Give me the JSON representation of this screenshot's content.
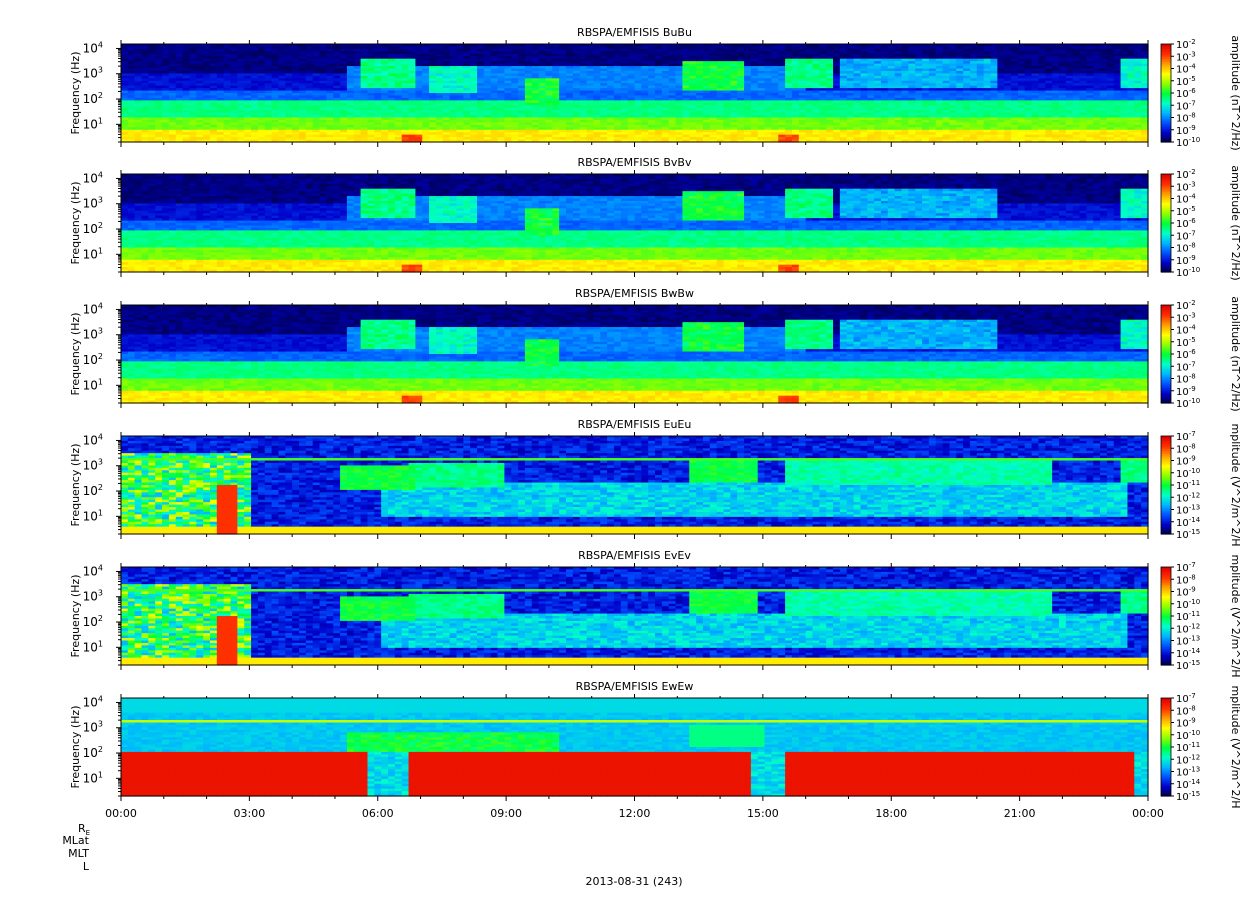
{
  "chart_data": [
    {
      "type": "heatmap",
      "title": "RBSPA/EMFISIS  BuBu",
      "ylabel": "Frequency (Hz)",
      "ylim": [
        2,
        15000
      ],
      "yscale": "log",
      "y_ticks": [
        {
          "value": 10,
          "label": "10^1"
        },
        {
          "value": 100,
          "label": "10^2"
        },
        {
          "value": 1000,
          "label": "10^3"
        },
        {
          "value": 10000,
          "label": "10^4"
        }
      ],
      "colorbar": {
        "label": "amplitude (nT^2/Hz)",
        "exponents": [
          -2,
          -3,
          -4,
          -5,
          -6,
          -7,
          -8,
          -9,
          -10
        ],
        "range": [
          1e-10,
          0.01
        ]
      },
      "field": "magnetic"
    },
    {
      "type": "heatmap",
      "title": "RBSPA/EMFISIS  BvBv",
      "ylabel": "Frequency (Hz)",
      "ylim": [
        2,
        15000
      ],
      "yscale": "log",
      "y_ticks": [
        {
          "value": 10,
          "label": "10^1"
        },
        {
          "value": 100,
          "label": "10^2"
        },
        {
          "value": 1000,
          "label": "10^3"
        },
        {
          "value": 10000,
          "label": "10^4"
        }
      ],
      "colorbar": {
        "label": "amplitude (nT^2/Hz)",
        "exponents": [
          -2,
          -3,
          -4,
          -5,
          -6,
          -7,
          -8,
          -9,
          -10
        ],
        "range": [
          1e-10,
          0.01
        ]
      },
      "field": "magnetic"
    },
    {
      "type": "heatmap",
      "title": "RBSPA/EMFISIS  BwBw",
      "ylabel": "Frequency (Hz)",
      "ylim": [
        2,
        15000
      ],
      "yscale": "log",
      "y_ticks": [
        {
          "value": 10,
          "label": "10^1"
        },
        {
          "value": 100,
          "label": "10^2"
        },
        {
          "value": 1000,
          "label": "10^3"
        },
        {
          "value": 10000,
          "label": "10^4"
        }
      ],
      "colorbar": {
        "label": "amplitude (nT^2/Hz)",
        "exponents": [
          -2,
          -3,
          -4,
          -5,
          -6,
          -7,
          -8,
          -9,
          -10
        ],
        "range": [
          1e-10,
          0.01
        ]
      },
      "field": "magnetic"
    },
    {
      "type": "heatmap",
      "title": "RBSPA/EMFISIS  EuEu",
      "ylabel": "Frequency (Hz)",
      "ylim": [
        2,
        15000
      ],
      "yscale": "log",
      "y_ticks": [
        {
          "value": 10,
          "label": "10^1"
        },
        {
          "value": 100,
          "label": "10^2"
        },
        {
          "value": 1000,
          "label": "10^3"
        },
        {
          "value": 10000,
          "label": "10^4"
        }
      ],
      "colorbar": {
        "label": "mplitude (V^2/m^2/H",
        "exponents": [
          -7,
          -8,
          -9,
          -10,
          -11,
          -12,
          -13,
          -14,
          -15
        ],
        "range": [
          1e-15,
          1e-07
        ]
      },
      "field": "electric"
    },
    {
      "type": "heatmap",
      "title": "RBSPA/EMFISIS  EvEv",
      "ylabel": "Frequency (Hz)",
      "ylim": [
        2,
        15000
      ],
      "yscale": "log",
      "y_ticks": [
        {
          "value": 10,
          "label": "10^1"
        },
        {
          "value": 100,
          "label": "10^2"
        },
        {
          "value": 1000,
          "label": "10^3"
        },
        {
          "value": 10000,
          "label": "10^4"
        }
      ],
      "colorbar": {
        "label": "mplitude (V^2/m^2/H",
        "exponents": [
          -7,
          -8,
          -9,
          -10,
          -11,
          -12,
          -13,
          -14,
          -15
        ],
        "range": [
          1e-15,
          1e-07
        ]
      },
      "field": "electric"
    },
    {
      "type": "heatmap",
      "title": "RBSPA/EMFISIS  EwEw",
      "ylabel": "Frequency (Hz)",
      "ylim": [
        2,
        15000
      ],
      "yscale": "log",
      "y_ticks": [
        {
          "value": 10,
          "label": "10^1"
        },
        {
          "value": 100,
          "label": "10^2"
        },
        {
          "value": 1000,
          "label": "10^3"
        },
        {
          "value": 10000,
          "label": "10^4"
        }
      ],
      "colorbar": {
        "label": "mplitude (V^2/m^2/H",
        "exponents": [
          -7,
          -8,
          -9,
          -10,
          -11,
          -12,
          -13,
          -14,
          -15
        ],
        "range": [
          1e-15,
          1e-07
        ]
      },
      "field": "electric_w"
    }
  ],
  "x_axis": {
    "ticks": [
      {
        "hour": 0,
        "label": "00:00"
      },
      {
        "hour": 3,
        "label": "03:00"
      },
      {
        "hour": 6,
        "label": "06:00"
      },
      {
        "hour": 9,
        "label": "09:00"
      },
      {
        "hour": 12,
        "label": "12:00"
      },
      {
        "hour": 15,
        "label": "15:00"
      },
      {
        "hour": 18,
        "label": "18:00"
      },
      {
        "hour": 21,
        "label": "21:00"
      },
      {
        "hour": 24,
        "label": "00:00"
      }
    ],
    "range_hours": [
      0,
      24
    ],
    "ephemeris_labels": {
      "re_main": "R",
      "re_sub": "E",
      "mlat": "MLat",
      "mlt": "MLT",
      "l": "L"
    },
    "date_label": "2013-08-31 (243)"
  },
  "colors": {
    "colormap": [
      "#00003a",
      "#0000c8",
      "#0050ff",
      "#00b4ff",
      "#00ffc8",
      "#00ff3c",
      "#8cff00",
      "#ffff00",
      "#ffa000",
      "#ff3000",
      "#e00000"
    ]
  }
}
